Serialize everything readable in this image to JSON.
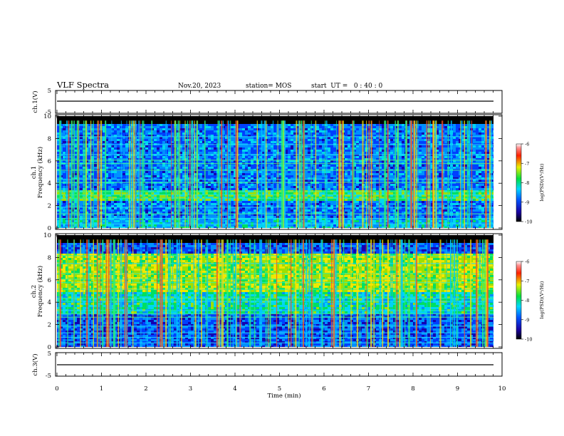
{
  "header": {
    "title": "VLF Spectra",
    "date": "Nov.20, 2023",
    "station": "station= MOS",
    "start_ut": "start  UT =   0 : 40 : 0"
  },
  "chart_data": [
    {
      "type": "line",
      "ylabel": "ch.1(V)",
      "ylim": [
        -5,
        5
      ],
      "yticks": [
        "5",
        "-5"
      ],
      "xlim": [
        0,
        10
      ],
      "series": [
        {
          "values": [
            0,
            0
          ]
        }
      ]
    },
    {
      "type": "heatmap",
      "ylabel": "ch.1\nFrequency (kHz)",
      "ylabel_line1": "ch.1",
      "ylabel_line2": "Frequency (kHz)",
      "ylim": [
        0,
        10
      ],
      "yticks": [
        "0",
        "2",
        "4",
        "6",
        "8",
        "10"
      ],
      "xlim": [
        0,
        10
      ],
      "colorbar": {
        "label": "log(PSD)(V²/Hz)",
        "range": [
          -10,
          -6
        ],
        "ticks": [
          "-6",
          "-7",
          "-8",
          "-9",
          "-10"
        ]
      }
    },
    {
      "type": "heatmap",
      "ylabel": "ch.2\nFrequency (kHz)",
      "ylabel_line1": "ch.2",
      "ylabel_line2": "Frequency (kHz)",
      "ylim": [
        0,
        10
      ],
      "yticks": [
        "0",
        "2",
        "4",
        "6",
        "8",
        "10"
      ],
      "xlim": [
        0,
        10
      ],
      "colorbar": {
        "label": "log(PSD)(V²/Hz)",
        "range": [
          -10,
          -6
        ],
        "ticks": [
          "-6",
          "-7",
          "-8",
          "-9",
          "-10"
        ]
      }
    },
    {
      "type": "line",
      "ylabel": "ch.3(V)",
      "ylim": [
        -5,
        5
      ],
      "yticks": [
        "5",
        "-5"
      ],
      "xlim": [
        0,
        10
      ],
      "xlabel": "Time (min)",
      "xticks": [
        "0",
        "1",
        "2",
        "3",
        "4",
        "5",
        "6",
        "7",
        "8",
        "9",
        "10"
      ],
      "series": [
        {
          "values": [
            0,
            0
          ]
        }
      ]
    }
  ]
}
